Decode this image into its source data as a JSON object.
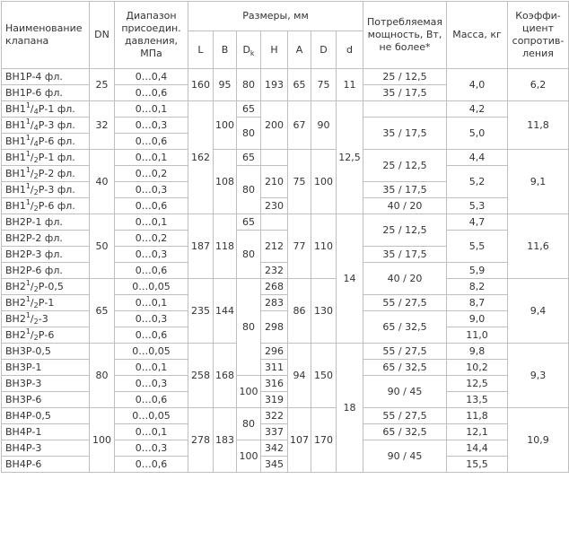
{
  "header": {
    "name": "Наименование клапана",
    "dn": "DN",
    "pressure": "Диапазон присоедин. давления, МПа",
    "dims": "Размеры, мм",
    "l": "L",
    "b": "B",
    "dk_main": "D",
    "dk_sub": "k",
    "h": "H",
    "a": "A",
    "d_cap": "D",
    "d_small": "d",
    "power": "Потребляемая мощность, Вт, не более*",
    "mass": "Масса, кг",
    "coef": "Коэффи-циент сопротив-ления"
  },
  "groups": [
    {
      "dn": "25",
      "l": "160",
      "b": "95",
      "a": "65",
      "d": "75",
      "coef": "6,2"
    },
    {
      "dn": "32",
      "b": "100",
      "h": "200",
      "a": "67",
      "d": "90",
      "coef": "11,8"
    },
    {
      "dn": "40",
      "b": "108",
      "a": "75",
      "d": "100",
      "coef": "9,1"
    },
    {
      "dn": "50",
      "l": "187",
      "b": "118",
      "a": "77",
      "d": "110",
      "coef": "11,6"
    },
    {
      "dn": "65",
      "l": "235",
      "b": "144",
      "a": "86",
      "d": "130",
      "coef": "9,4"
    },
    {
      "dn": "80",
      "l": "258",
      "b": "168",
      "a": "94",
      "d": "150",
      "coef": "9,3"
    },
    {
      "dn": "100",
      "l": "278",
      "b": "183",
      "a": "107",
      "d": "170",
      "coef": "10,9"
    }
  ],
  "shared": {
    "l_32_40": "162",
    "d_small_25": "11",
    "d_small_32_40": "12,5",
    "d_small_50_65": "14",
    "d_small_80_100": "18",
    "dk_65": "80",
    "dk_100": "100"
  },
  "rows": [
    {
      "name": "ВН1Р-4 фл.",
      "pressure": "0…0,4",
      "dk": "80",
      "h": "193",
      "power": "25 / 12,5",
      "mass": "4,0"
    },
    {
      "name": "ВН1Р-6 фл.",
      "pressure": "0…0,6",
      "power": "35 / 17,5"
    },
    {
      "name_pre": "ВН1",
      "name_num": "1",
      "name_den": "4",
      "name_post": "Р-1 фл.",
      "pressure": "0…0,1",
      "dk": "65",
      "mass": "4,2"
    },
    {
      "name_pre": "ВН1",
      "name_num": "1",
      "name_den": "4",
      "name_post": "Р-3 фл.",
      "pressure": "0…0,3",
      "dk": "80",
      "power": "35 / 17,5",
      "mass": "5,0"
    },
    {
      "name_pre": "ВН1",
      "name_num": "1",
      "name_den": "4",
      "name_post": "Р-6 фл.",
      "pressure": "0…0,6"
    },
    {
      "name_pre": "ВН1",
      "name_num": "1",
      "name_den": "2",
      "name_post": "Р-1 фл.",
      "pressure": "0…0,1",
      "dk": "65",
      "power": "25 / 12,5",
      "mass": "4,4"
    },
    {
      "name_pre": "ВН1",
      "name_num": "1",
      "name_den": "2",
      "name_post": "Р-2 фл.",
      "pressure": "0…0,2",
      "h": "210",
      "dk": "80"
    },
    {
      "name_pre": "ВН1",
      "name_num": "1",
      "name_den": "2",
      "name_post": "Р-3 фл.",
      "pressure": "0…0,3",
      "power": "35 / 17,5",
      "mass": "5,2"
    },
    {
      "name_pre": "ВН1",
      "name_num": "1",
      "name_den": "2",
      "name_post": "Р-6 фл.",
      "pressure": "0…0,6",
      "h": "230",
      "power": "40 / 20",
      "mass": "5,3"
    },
    {
      "name": "ВН2Р-1 фл.",
      "pressure": "0…0,1",
      "dk": "65",
      "mass": "4,7",
      "power": "25 / 12,5"
    },
    {
      "name": "ВН2Р-2 фл.",
      "pressure": "0…0,2",
      "h": "212",
      "dk": "80",
      "mass": "5,5"
    },
    {
      "name": "ВН2Р-3 фл.",
      "pressure": "0…0,3",
      "power": "35 / 17,5"
    },
    {
      "name": "ВН2Р-6 фл.",
      "pressure": "0…0,6",
      "h": "232",
      "power": "40 / 20",
      "mass": "5,9"
    },
    {
      "name_pre": "ВН2",
      "name_num": "1",
      "name_den": "2",
      "name_post": "Р-0,5",
      "pressure": "0…0,05",
      "h": "268",
      "mass": "8,2"
    },
    {
      "name_pre": "ВН2",
      "name_num": "1",
      "name_den": "2",
      "name_post": "Р-1",
      "pressure": "0…0,1",
      "h": "283",
      "power": "55 / 27,5",
      "mass": "8,7"
    },
    {
      "name_pre": "ВН2",
      "name_num": "1",
      "name_den": "2",
      "name_post": "-3",
      "pressure": "0…0,3",
      "h": "298",
      "power": "65 / 32,5",
      "mass": "9,0"
    },
    {
      "name_pre": "ВН2",
      "name_num": "1",
      "name_den": "2",
      "name_post": "Р-6",
      "pressure": "0…0,6",
      "mass": "11,0"
    },
    {
      "name": "ВН3Р-0,5",
      "pressure": "0…0,05",
      "h": "296",
      "power": "55 / 27,5",
      "mass": "9,8"
    },
    {
      "name": "ВН3Р-1",
      "pressure": "0…0,1",
      "h": "311",
      "power": "65 / 32,5",
      "mass": "10,2"
    },
    {
      "name": "ВН3Р-3",
      "pressure": "0…0,3",
      "h": "316",
      "power": "90 / 45",
      "mass": "12,5"
    },
    {
      "name": "ВН3Р-6",
      "pressure": "0…0,6",
      "h": "319",
      "mass": "13,5"
    },
    {
      "name": "ВН4Р-0,5",
      "pressure": "0…0,05",
      "dk": "80",
      "h": "322",
      "power": "55 / 27,5",
      "mass": "11,8"
    },
    {
      "name": "ВН4Р-1",
      "pressure": "0…0,1",
      "h": "337",
      "power": "65 / 32,5",
      "mass": "12,1"
    },
    {
      "name": "ВН4Р-3",
      "pressure": "0…0,3",
      "h": "342",
      "power": "90 / 45",
      "mass": "14,4"
    },
    {
      "name": "ВН4Р-6",
      "pressure": "0…0,6",
      "h": "345",
      "mass": "15,5"
    }
  ]
}
